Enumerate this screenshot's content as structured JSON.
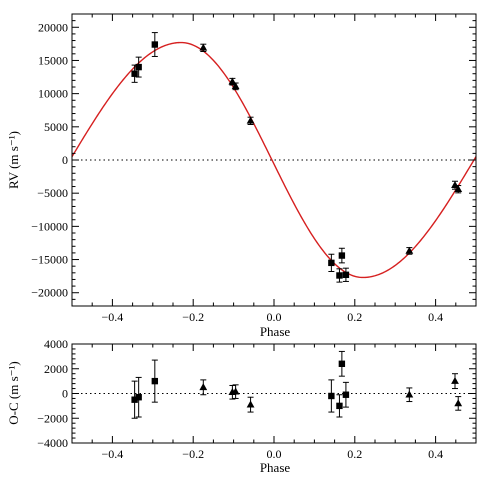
{
  "chart_data": [
    {
      "type": "scatter",
      "panel": "top",
      "xlabel": "Phase",
      "ylabel": "RV (m s⁻¹)",
      "xlim": [
        -0.5,
        0.5
      ],
      "ylim": [
        -22000,
        22000
      ],
      "xticks": [
        -0.4,
        -0.2,
        0.0,
        0.2,
        0.4
      ],
      "xtick_labels": [
        "−0.4",
        "−0.2",
        "0.0",
        "0.2",
        "0.4"
      ],
      "yticks": [
        -20000,
        -15000,
        -10000,
        -5000,
        0,
        5000,
        10000,
        15000,
        20000
      ],
      "ytick_labels": [
        "−20000",
        "−15000",
        "−10000",
        "−5000",
        "0",
        "5000",
        "10000",
        "15000",
        "20000"
      ],
      "zero_line": true,
      "fit_color": "#d62020",
      "fit": {
        "semi_amplitude": 17700,
        "phase_of_maximum": -0.23,
        "phase_of_minimum": 0.22
      },
      "series": [
        {
          "marker": "square",
          "points": [
            {
              "x": -0.345,
              "y": 13000,
              "err": 1300
            },
            {
              "x": -0.335,
              "y": 14000,
              "err": 1500
            },
            {
              "x": -0.295,
              "y": 17400,
              "err": 1800
            },
            {
              "x": 0.142,
              "y": -15500,
              "err": 1300
            },
            {
              "x": 0.162,
              "y": -17400,
              "err": 1000
            },
            {
              "x": 0.168,
              "y": -14400,
              "err": 1100
            },
            {
              "x": 0.178,
              "y": -17300,
              "err": 1000
            }
          ]
        },
        {
          "marker": "triangle",
          "points": [
            {
              "x": -0.175,
              "y": 16900,
              "err": 550
            },
            {
              "x": -0.103,
              "y": 11800,
              "err": 500
            },
            {
              "x": -0.095,
              "y": 11100,
              "err": 500
            },
            {
              "x": -0.058,
              "y": 5900,
              "err": 550
            },
            {
              "x": 0.335,
              "y": -13700,
              "err": 500
            },
            {
              "x": 0.448,
              "y": -3800,
              "err": 600
            },
            {
              "x": 0.456,
              "y": -4400,
              "err": 550
            }
          ]
        }
      ]
    },
    {
      "type": "scatter",
      "panel": "bottom",
      "xlabel": "Phase",
      "ylabel": "O-C (m s⁻¹)",
      "xlim": [
        -0.5,
        0.5
      ],
      "ylim": [
        -4000,
        4000
      ],
      "xticks": [
        -0.4,
        -0.2,
        0.0,
        0.2,
        0.4
      ],
      "xtick_labels": [
        "−0.4",
        "−0.2",
        "0.0",
        "0.2",
        "0.4"
      ],
      "yticks": [
        -4000,
        -2000,
        0,
        2000,
        4000
      ],
      "ytick_labels": [
        "−4000",
        "−2000",
        "0",
        "2000",
        "4000"
      ],
      "zero_line": true,
      "series": [
        {
          "marker": "square",
          "points": [
            {
              "x": -0.345,
              "y": -500,
              "err": 1500
            },
            {
              "x": -0.335,
              "y": -300,
              "err": 1600
            },
            {
              "x": -0.295,
              "y": 1000,
              "err": 1700
            },
            {
              "x": 0.142,
              "y": -200,
              "err": 1300
            },
            {
              "x": 0.162,
              "y": -1000,
              "err": 900
            },
            {
              "x": 0.168,
              "y": 2400,
              "err": 1000
            },
            {
              "x": 0.178,
              "y": -100,
              "err": 1000
            }
          ]
        },
        {
          "marker": "triangle",
          "points": [
            {
              "x": -0.175,
              "y": 500,
              "err": 600
            },
            {
              "x": -0.103,
              "y": 100,
              "err": 550
            },
            {
              "x": -0.095,
              "y": 150,
              "err": 550
            },
            {
              "x": -0.058,
              "y": -900,
              "err": 600
            },
            {
              "x": 0.335,
              "y": -100,
              "err": 550
            },
            {
              "x": 0.448,
              "y": 1000,
              "err": 600
            },
            {
              "x": 0.456,
              "y": -800,
              "err": 550
            }
          ]
        }
      ]
    }
  ]
}
